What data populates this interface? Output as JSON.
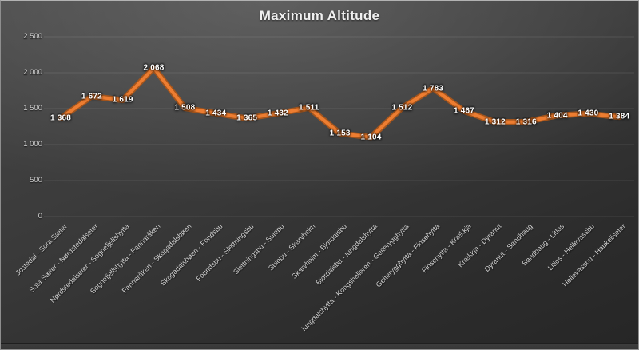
{
  "chart_data": {
    "type": "line",
    "title": "Maximum Altitude",
    "categories": [
      "Jostedal - Sota Sæter",
      "Sota Sæter - Nørdstedalseter",
      "Nørdstedalseter - Sognefjellshytta",
      "Sognefjellshytta - Fannaråken",
      "Fannaråken - Skogadalsbøen",
      "Skogadalsbøen - Fondsbu",
      "Foundsbu - Slettningsbu",
      "Slettningsbu - Sulebu",
      "Sulebu - Skarvheim",
      "Skarvheim - Bjordalsbu",
      "Bjordalsbu - Iungdalshytta",
      "Iungdalshytta - Kongshelleren - Geiterygghytta",
      "Geiterygghytta - Finsehytta",
      "Finsehytta - Krækkja",
      "Krækkja - Dyranut",
      "Dyranut - Sandhaug",
      "Sandhaug - Litlos",
      "Litlos - Hellevassbu",
      "Hellevassbu - Haukeliseter"
    ],
    "values": [
      1368,
      1672,
      1619,
      2068,
      1508,
      1434,
      1365,
      1432,
      1511,
      1153,
      1104,
      1512,
      1783,
      1467,
      1312,
      1316,
      1404,
      1430,
      1384
    ],
    "data_labels": [
      "1 368",
      "1 672",
      "1 619",
      "2 068",
      "1 508",
      "1 434",
      "1 365",
      "1 432",
      "1 511",
      "1 153",
      "1 104",
      "1 512",
      "1 783",
      "1 467",
      "1 312",
      "1 316",
      "1 404",
      "1 430",
      "1 384"
    ],
    "xlabel": "",
    "ylabel": "",
    "ylim": [
      0,
      2500
    ],
    "yticks": [
      0,
      500,
      1000,
      1500,
      2000,
      2500
    ],
    "ytick_labels": [
      "0",
      "500",
      "1 000",
      "1 500",
      "2 000",
      "2 500"
    ],
    "grid": true,
    "legend": "none",
    "data_label_position": "center",
    "xtick_rotation_deg": 45,
    "colors": {
      "line": "#ED7D31",
      "line_edge": "#A5551C",
      "data_label": "#FFFFFF",
      "axis_text": "#D2D2D2",
      "gridline": "rgba(255,255,255,0.10)",
      "title": "#F0F0F0"
    }
  }
}
